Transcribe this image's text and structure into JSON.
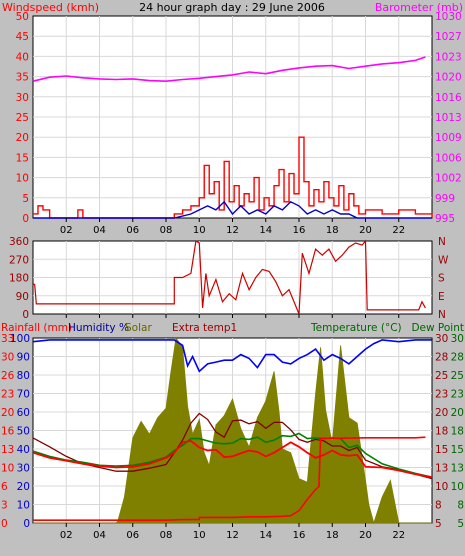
{
  "page": {
    "title": "24 hour graph day : 29 June 2006"
  },
  "colors": {
    "background": "#c0c0c0",
    "plot_bg": "#ffffff",
    "grid": "#d8d8d8",
    "wind_speed": "#ff0000",
    "wind_avg": "#0000cc",
    "barometer": "#ff00ff",
    "direction": "#cc0000",
    "rainfall": "#ff0000",
    "humidity": "#0000ff",
    "solar": "#808000",
    "extra_temp": "#800000",
    "temperature": "#008000",
    "dew_point": "#ff0000",
    "label_red": "#ff0000",
    "label_blue": "#0000cc",
    "label_magenta": "#ff00ff",
    "label_darkred": "#990000",
    "label_green": "#006600",
    "label_olive": "#666600"
  },
  "x_ticks": [
    "02",
    "04",
    "06",
    "08",
    "10",
    "12",
    "14",
    "16",
    "18",
    "20",
    "22"
  ],
  "chart_data": [
    {
      "type": "line",
      "panel": "wind",
      "title": "24 hour graph day : 29 June 2006",
      "left_label": "Windspeed (kmh)",
      "right_label": "Barometer (mb)",
      "xlim": [
        0,
        24
      ],
      "ylim": [
        0,
        50
      ],
      "y2lim": [
        995,
        1030
      ],
      "yticks": [
        "0",
        "5",
        "10",
        "15",
        "20",
        "25",
        "30",
        "35",
        "40",
        "45",
        "50"
      ],
      "y2ticks": [
        "995",
        "999",
        "1002",
        "1006",
        "1009",
        "1013",
        "1016",
        "1020",
        "1023",
        "1027",
        "1030"
      ],
      "series": [
        {
          "role": "windspeed",
          "x": [
            0.0,
            0.3,
            0.6,
            1.0,
            2.5,
            2.7,
            3.0,
            8.0,
            8.5,
            9.0,
            9.5,
            10.0,
            10.3,
            10.6,
            10.9,
            11.2,
            11.5,
            11.8,
            12.1,
            12.4,
            12.7,
            13.0,
            13.3,
            13.6,
            13.9,
            14.2,
            14.5,
            14.8,
            15.1,
            15.4,
            15.7,
            16.0,
            16.3,
            16.6,
            16.9,
            17.2,
            17.5,
            17.8,
            18.1,
            18.4,
            18.7,
            19.0,
            19.3,
            19.6,
            20.0,
            21.0,
            22.0,
            23.0,
            24.0
          ],
          "values": [
            1,
            3,
            2,
            0,
            0,
            2,
            0,
            0,
            1,
            2,
            3,
            5,
            13,
            6,
            9,
            2,
            14,
            4,
            8,
            3,
            6,
            4,
            10,
            2,
            5,
            3,
            8,
            12,
            4,
            11,
            6,
            20,
            9,
            3,
            7,
            4,
            9,
            5,
            3,
            8,
            2,
            6,
            3,
            1,
            2,
            1,
            2,
            1,
            0
          ]
        },
        {
          "role": "windavg",
          "x": [
            0,
            8.5,
            9.5,
            10,
            10.5,
            11,
            11.5,
            12,
            12.5,
            13,
            13.5,
            14,
            14.5,
            15,
            15.5,
            16,
            16.5,
            17,
            17.5,
            18,
            18.5,
            19,
            19.5,
            20,
            24
          ],
          "values": [
            0,
            0,
            1,
            2,
            3,
            2,
            4,
            1,
            3,
            1,
            2,
            1,
            3,
            2,
            4,
            3,
            1,
            2,
            1,
            2,
            1,
            1,
            0,
            0,
            0
          ]
        },
        {
          "role": "barometer",
          "x": [
            0,
            1,
            2,
            3,
            4,
            5,
            6,
            7,
            8,
            9,
            10,
            11,
            12,
            13,
            14,
            15,
            16,
            17,
            18,
            19,
            20,
            21,
            22,
            23,
            23.6
          ],
          "values": [
            1018.7,
            1019.4,
            1019.6,
            1019.3,
            1019.1,
            1019.0,
            1019.1,
            1018.8,
            1018.7,
            1019.0,
            1019.2,
            1019.5,
            1019.8,
            1020.3,
            1020.0,
            1020.6,
            1021.0,
            1021.3,
            1021.4,
            1020.9,
            1021.3,
            1021.7,
            1021.9,
            1022.3,
            1022.9
          ]
        }
      ]
    },
    {
      "type": "line",
      "panel": "direction",
      "xlim": [
        0,
        24
      ],
      "ylim": [
        0,
        360
      ],
      "yticks": [
        "0",
        "90",
        "180",
        "270",
        "360"
      ],
      "right_ticks": [
        "N",
        "E",
        "S",
        "W",
        "N"
      ],
      "series": [
        {
          "role": "direction",
          "x": [
            0,
            0.1,
            0.2,
            1.0,
            2.0,
            3.0,
            4.0,
            5.0,
            6.0,
            7.0,
            8.0,
            8.5,
            8.5,
            9.0,
            9.5,
            9.8,
            10.0,
            10.2,
            10.4,
            10.6,
            11.0,
            11.4,
            11.8,
            12.2,
            12.6,
            13.0,
            13.4,
            13.8,
            14.2,
            14.6,
            15.0,
            15.4,
            15.8,
            16.0,
            16.2,
            16.6,
            17.0,
            17.4,
            17.8,
            18.2,
            18.6,
            19.0,
            19.4,
            19.8,
            20.0,
            20.1,
            21.0,
            22.0,
            23.0,
            23.2,
            23.4,
            23.6
          ],
          "values": [
            150,
            145,
            50,
            50,
            50,
            50,
            50,
            50,
            50,
            50,
            50,
            50,
            180,
            180,
            200,
            360,
            350,
            30,
            200,
            90,
            170,
            60,
            100,
            70,
            200,
            120,
            180,
            220,
            210,
            160,
            90,
            120,
            40,
            0,
            300,
            200,
            320,
            290,
            320,
            260,
            290,
            330,
            350,
            340,
            360,
            20,
            20,
            20,
            20,
            20,
            60,
            30
          ]
        }
      ]
    },
    {
      "type": "line",
      "panel": "weather",
      "labels": {
        "rainfall": "Rainfall (mm)",
        "humidity": "Humidity %",
        "solar": "Solar",
        "extra_temp": "Extra temp1",
        "temperature": "Temperature (°C)",
        "dew_point": "Dew Point"
      },
      "xlim": [
        0,
        24
      ],
      "ylim": [
        0,
        100
      ],
      "yticks_humidity": [
        "0",
        "10",
        "20",
        "30",
        "40",
        "50",
        "60",
        "70",
        "80",
        "90",
        "100"
      ],
      "yticks_rain": [
        "0",
        "3",
        "6",
        "10",
        "13",
        "16",
        "20",
        "23",
        "26",
        "30",
        "33"
      ],
      "yticks_temp": [
        "5",
        "8",
        "10",
        "13",
        "15",
        "18",
        "20",
        "23",
        "25",
        "28",
        "30"
      ],
      "y2ticks_temp": [
        "5",
        "8",
        "10",
        "13",
        "15",
        "18",
        "20",
        "23",
        "25",
        "28",
        "30"
      ],
      "series": [
        {
          "role": "solar",
          "x": [
            0,
            5.0,
            5.1,
            5.5,
            6.0,
            6.5,
            7.0,
            7.5,
            8.0,
            8.3,
            8.6,
            9.0,
            9.3,
            9.6,
            10.0,
            10.3,
            10.6,
            11.0,
            11.5,
            12.0,
            12.5,
            13.0,
            13.5,
            14.0,
            14.5,
            14.8,
            15.0,
            15.5,
            16.0,
            16.5,
            17.0,
            17.3,
            17.6,
            18.0,
            18.5,
            19.0,
            19.5,
            20.0,
            20.2,
            20.5,
            21.0,
            21.5,
            22.0,
            22.5,
            23.0,
            23.5,
            24.0
          ],
          "values": [
            0,
            0,
            1,
            14,
            46,
            55,
            48,
            57,
            62,
            82,
            100,
            95,
            63,
            48,
            56,
            38,
            31,
            53,
            58,
            67,
            51,
            41,
            57,
            66,
            82,
            60,
            40,
            38,
            24,
            22,
            70,
            95,
            61,
            43,
            96,
            57,
            54,
            23,
            10,
            0,
            14,
            23,
            0,
            0,
            0,
            0,
            0
          ]
        },
        {
          "role": "humidity",
          "x": [
            0,
            1,
            2,
            3,
            4,
            5,
            6,
            7,
            8,
            8.5,
            9.0,
            9.3,
            9.6,
            10,
            10.5,
            11,
            11.5,
            12,
            12.5,
            13,
            13.5,
            14,
            14.5,
            15,
            15.5,
            16,
            16.5,
            17,
            17.5,
            18,
            18.5,
            19,
            19.5,
            20,
            20.5,
            21,
            22,
            23,
            24
          ],
          "values": [
            98,
            99,
            99,
            99,
            99,
            99,
            99,
            99,
            99,
            99,
            96,
            85,
            90,
            82,
            86,
            87,
            88,
            88,
            91,
            89,
            84,
            91,
            91,
            87,
            86,
            89,
            91,
            94,
            88,
            91,
            89,
            86,
            90,
            94,
            97,
            99,
            98,
            99,
            99
          ]
        },
        {
          "role": "extra_temp",
          "x": [
            0,
            1,
            2,
            3,
            4,
            5,
            6,
            7,
            8,
            8.5,
            9.0,
            9.5,
            10,
            10.5,
            11,
            11.5,
            12,
            12.5,
            13,
            13.5,
            14,
            14.5,
            15,
            15.5,
            16,
            16.5,
            17,
            17.5,
            18,
            18.5,
            19,
            19.5,
            20,
            21,
            22,
            23,
            24
          ],
          "values": [
            16.5,
            15.3,
            14.0,
            13.0,
            12.5,
            12.0,
            12.0,
            12.4,
            12.9,
            14.5,
            16.2,
            18.5,
            19.8,
            19.0,
            17.3,
            16.6,
            18.8,
            18.9,
            18.4,
            18.7,
            17.8,
            18.6,
            18.6,
            17.6,
            16.3,
            15.9,
            16.3,
            16.1,
            15.4,
            15.4,
            14.8,
            15.2,
            13.5,
            12.6,
            12.2,
            11.6,
            11.0
          ]
        },
        {
          "role": "temperature",
          "x": [
            0,
            1,
            2,
            3,
            4,
            5,
            6,
            7,
            8,
            8.5,
            9.0,
            9.5,
            10,
            10.5,
            11,
            11.5,
            12,
            12.5,
            13,
            13.5,
            14,
            14.5,
            15,
            15.5,
            16,
            16.5,
            17,
            17.5,
            18,
            18.5,
            19,
            19.5,
            20,
            21,
            22,
            23,
            24
          ],
          "values": [
            14.7,
            14.0,
            13.5,
            13.2,
            12.8,
            12.7,
            12.8,
            13.2,
            13.9,
            14.8,
            15.5,
            16.4,
            16.4,
            16.1,
            15.8,
            15.7,
            15.8,
            16.4,
            16.3,
            16.6,
            15.9,
            16.2,
            16.8,
            16.7,
            17.1,
            16.4,
            16.5,
            16.4,
            16.5,
            16.4,
            15.2,
            15.5,
            14.4,
            13.0,
            12.3,
            11.7,
            11.2
          ]
        },
        {
          "role": "dew_point",
          "x": [
            0,
            1,
            2,
            3,
            4,
            5,
            6,
            7,
            8,
            8.5,
            9.0,
            9.5,
            10,
            10.5,
            11,
            11.5,
            12,
            12.5,
            13,
            13.5,
            14,
            14.5,
            15,
            15.5,
            16,
            16.5,
            17,
            17.5,
            18,
            18.5,
            19,
            19.5,
            20,
            21,
            22,
            23,
            24
          ],
          "values": [
            14.5,
            13.8,
            13.4,
            13.0,
            12.7,
            12.5,
            12.6,
            13.0,
            13.8,
            14.5,
            15.9,
            16.1,
            15.2,
            14.8,
            14.9,
            13.9,
            14.0,
            14.4,
            14.8,
            14.6,
            14.0,
            14.5,
            15.2,
            15.9,
            15.3,
            14.5,
            13.8,
            14.2,
            14.8,
            14.2,
            14.1,
            14.2,
            12.6,
            12.5,
            12.1,
            11.6,
            11.2
          ]
        },
        {
          "role": "rainfall",
          "x": [
            0,
            6,
            7,
            8,
            9,
            10,
            10.0,
            11,
            12,
            13,
            14,
            15,
            15.5,
            16.0,
            16.5,
            17,
            17.2,
            17.3,
            18,
            20,
            22,
            23,
            23.6
          ],
          "values": [
            0.5,
            0.5,
            0.5,
            0.5,
            0.6,
            0.6,
            1.0,
            1.0,
            1.0,
            1.1,
            1.1,
            1.2,
            1.3,
            2.2,
            4.2,
            6.0,
            6.5,
            15.1,
            15.1,
            15.2,
            15.2,
            15.2,
            15.3
          ]
        }
      ]
    }
  ]
}
